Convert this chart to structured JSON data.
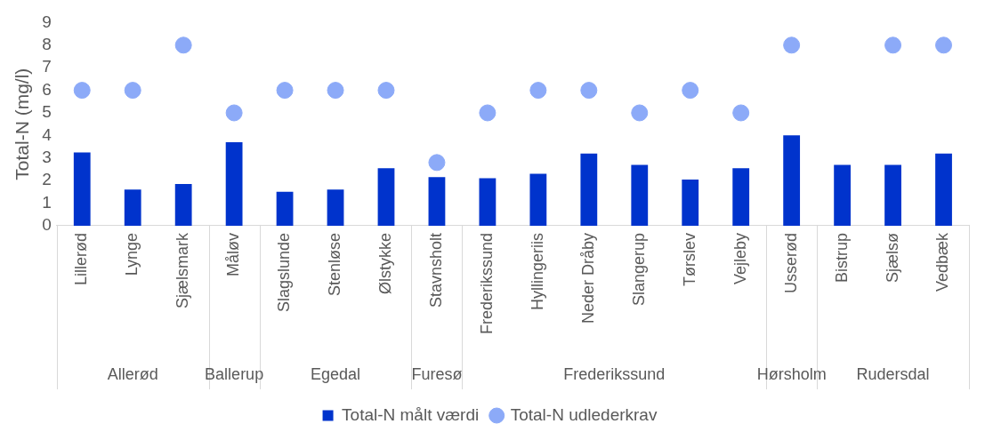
{
  "chart_data": {
    "type": "bar",
    "ylabel": "Total-N (mg/l)",
    "categories": [
      "Lillerød",
      "Lynge",
      "Sjælsmark",
      "Måløv",
      "Slagslunde",
      "Stenløse",
      "Ølstykke",
      "Stavnsholt",
      "Frederikssund",
      "Hyllingeriis",
      "Neder Dråby",
      "Slangerup",
      "Tørslev",
      "Vejleby",
      "Usserød",
      "Bistrup",
      "Sjælsø",
      "Vedbæk"
    ],
    "series": [
      {
        "name": "Total-N målt værdi",
        "color": "#0033cc",
        "values": [
          3.25,
          1.6,
          1.85,
          3.7,
          1.5,
          1.6,
          2.55,
          2.15,
          2.1,
          2.3,
          3.2,
          2.7,
          2.05,
          2.55,
          4.0,
          2.7,
          2.7,
          3.2
        ]
      },
      {
        "name": "Total-N udlederkrav",
        "type": "scatter",
        "color": "#8caaf8",
        "marker": "circle",
        "values": [
          6,
          6,
          8,
          5,
          6,
          6,
          6,
          2.8,
          5,
          6,
          6,
          5,
          6,
          5,
          8,
          null,
          8,
          8
        ]
      }
    ],
    "annotations": [
      "Allerød",
      "Ballerup",
      "Egedal",
      "Furesø",
      "Frederikssund",
      "Hørsholm",
      "Rudersdal"
    ],
    "ylim": [
      0,
      9
    ],
    "yticks": [
      0,
      1,
      2,
      3,
      4,
      5,
      6,
      7,
      8,
      9
    ],
    "grid": false,
    "legend": "bottom"
  }
}
